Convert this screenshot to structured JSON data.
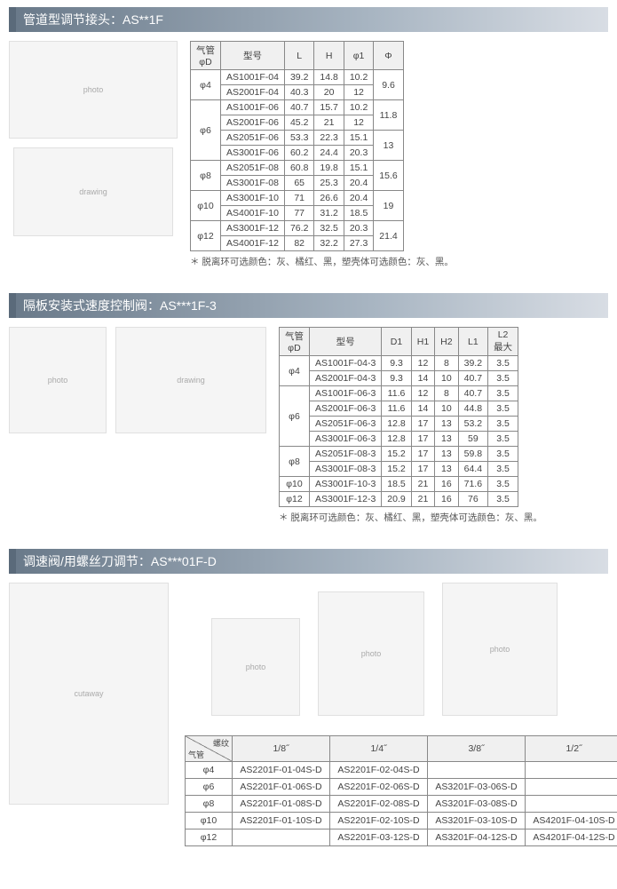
{
  "section1": {
    "title": "管道型调节接头：AS**1F",
    "table": {
      "headers": [
        "气管\nφD",
        "型号",
        "L",
        "H",
        "φ1",
        "Φ"
      ],
      "groups": [
        {
          "phiD": "φ4",
          "phi": "9.6",
          "rows": [
            {
              "model": "AS1001F-04",
              "L": "39.2",
              "H": "14.8",
              "phi1": "10.2"
            },
            {
              "model": "AS2001F-04",
              "L": "40.3",
              "H": "20",
              "phi1": "12"
            }
          ]
        },
        {
          "phiD": "φ6",
          "phi": [
            "11.8",
            "13"
          ],
          "rows": [
            {
              "model": "AS1001F-06",
              "L": "40.7",
              "H": "15.7",
              "phi1": "10.2"
            },
            {
              "model": "AS2001F-06",
              "L": "45.2",
              "H": "21",
              "phi1": "12"
            },
            {
              "model": "AS2051F-06",
              "L": "53.3",
              "H": "22.3",
              "phi1": "15.1"
            },
            {
              "model": "AS3001F-06",
              "L": "60.2",
              "H": "24.4",
              "phi1": "20.3"
            }
          ]
        },
        {
          "phiD": "φ8",
          "phi": "15.6",
          "rows": [
            {
              "model": "AS2051F-08",
              "L": "60.8",
              "H": "19.8",
              "phi1": "15.1"
            },
            {
              "model": "AS3001F-08",
              "L": "65",
              "H": "25.3",
              "phi1": "20.4"
            }
          ]
        },
        {
          "phiD": "φ10",
          "phi": "19",
          "rows": [
            {
              "model": "AS3001F-10",
              "L": "71",
              "H": "26.6",
              "phi1": "20.4"
            },
            {
              "model": "AS4001F-10",
              "L": "77",
              "H": "31.2",
              "phi1": "18.5"
            }
          ]
        },
        {
          "phiD": "φ12",
          "phi": "21.4",
          "rows": [
            {
              "model": "AS3001F-12",
              "L": "76.2",
              "H": "32.5",
              "phi1": "20.3"
            },
            {
              "model": "AS4001F-12",
              "L": "82",
              "H": "32.2",
              "phi1": "27.3"
            }
          ]
        }
      ]
    },
    "footnote": "＊ 脱离环可选颜色：灰、橘红、黑，塑壳体可选颜色：灰、黑。"
  },
  "section2": {
    "title": "隔板安装式速度控制阀：AS***1F-3",
    "table": {
      "headers": [
        "气管\nφD",
        "型号",
        "D1",
        "H1",
        "H2",
        "L1",
        "L2\n最大"
      ],
      "groups": [
        {
          "phiD": "φ4",
          "rows": [
            {
              "model": "AS1001F-04-3",
              "D1": "9.3",
              "H1": "12",
              "H2": "8",
              "L1": "39.2",
              "L2": "3.5"
            },
            {
              "model": "AS2001F-04-3",
              "D1": "9.3",
              "H1": "14",
              "H2": "10",
              "L1": "40.7",
              "L2": "3.5"
            }
          ]
        },
        {
          "phiD": "φ6",
          "rows": [
            {
              "model": "AS1001F-06-3",
              "D1": "11.6",
              "H1": "12",
              "H2": "8",
              "L1": "40.7",
              "L2": "3.5"
            },
            {
              "model": "AS2001F-06-3",
              "D1": "11.6",
              "H1": "14",
              "H2": "10",
              "L1": "44.8",
              "L2": "3.5"
            },
            {
              "model": "AS2051F-06-3",
              "D1": "12.8",
              "H1": "17",
              "H2": "13",
              "L1": "53.2",
              "L2": "3.5"
            },
            {
              "model": "AS3001F-06-3",
              "D1": "12.8",
              "H1": "17",
              "H2": "13",
              "L1": "59",
              "L2": "3.5"
            }
          ]
        },
        {
          "phiD": "φ8",
          "rows": [
            {
              "model": "AS2051F-08-3",
              "D1": "15.2",
              "H1": "17",
              "H2": "13",
              "L1": "59.8",
              "L2": "3.5"
            },
            {
              "model": "AS3001F-08-3",
              "D1": "15.2",
              "H1": "17",
              "H2": "13",
              "L1": "64.4",
              "L2": "3.5"
            }
          ]
        },
        {
          "phiD": "φ10",
          "rows": [
            {
              "model": "AS3001F-10-3",
              "D1": "18.5",
              "H1": "21",
              "H2": "16",
              "L1": "71.6",
              "L2": "3.5"
            }
          ]
        },
        {
          "phiD": "φ12",
          "rows": [
            {
              "model": "AS3001F-12-3",
              "D1": "20.9",
              "H1": "21",
              "H2": "16",
              "L1": "76",
              "L2": "3.5"
            }
          ]
        }
      ]
    },
    "footnote": "＊ 脱离环可选颜色：灰、橘红、黑，塑壳体可选颜色：灰、黑。"
  },
  "section3": {
    "title": "调速阀/用螺丝刀调节：AS***01F-D",
    "table": {
      "cornerTop": "螺纹",
      "cornerBottom": "气管",
      "cols": [
        "1/8˝",
        "1/4˝",
        "3/8˝",
        "1/2˝"
      ],
      "rows": [
        {
          "phiD": "φ4",
          "cells": [
            "AS2201F-01-04S-D",
            "AS2201F-02-04S-D",
            "",
            ""
          ]
        },
        {
          "phiD": "φ6",
          "cells": [
            "AS2201F-01-06S-D",
            "AS2201F-02-06S-D",
            "AS3201F-03-06S-D",
            ""
          ]
        },
        {
          "phiD": "φ8",
          "cells": [
            "AS2201F-01-08S-D",
            "AS2201F-02-08S-D",
            "AS3201F-03-08S-D",
            ""
          ]
        },
        {
          "phiD": "φ10",
          "cells": [
            "AS2201F-01-10S-D",
            "AS2201F-02-10S-D",
            "AS3201F-03-10S-D",
            "AS4201F-04-10S-D"
          ]
        },
        {
          "phiD": "φ12",
          "cells": [
            "",
            "AS2201F-03-12S-D",
            "AS3201F-04-12S-D",
            "AS4201F-04-12S-D"
          ]
        }
      ]
    }
  },
  "colors": {
    "header_bg_start": "#6a7a8a",
    "header_bg_end": "#d8dde4",
    "border": "#888888",
    "text": "#333333"
  }
}
